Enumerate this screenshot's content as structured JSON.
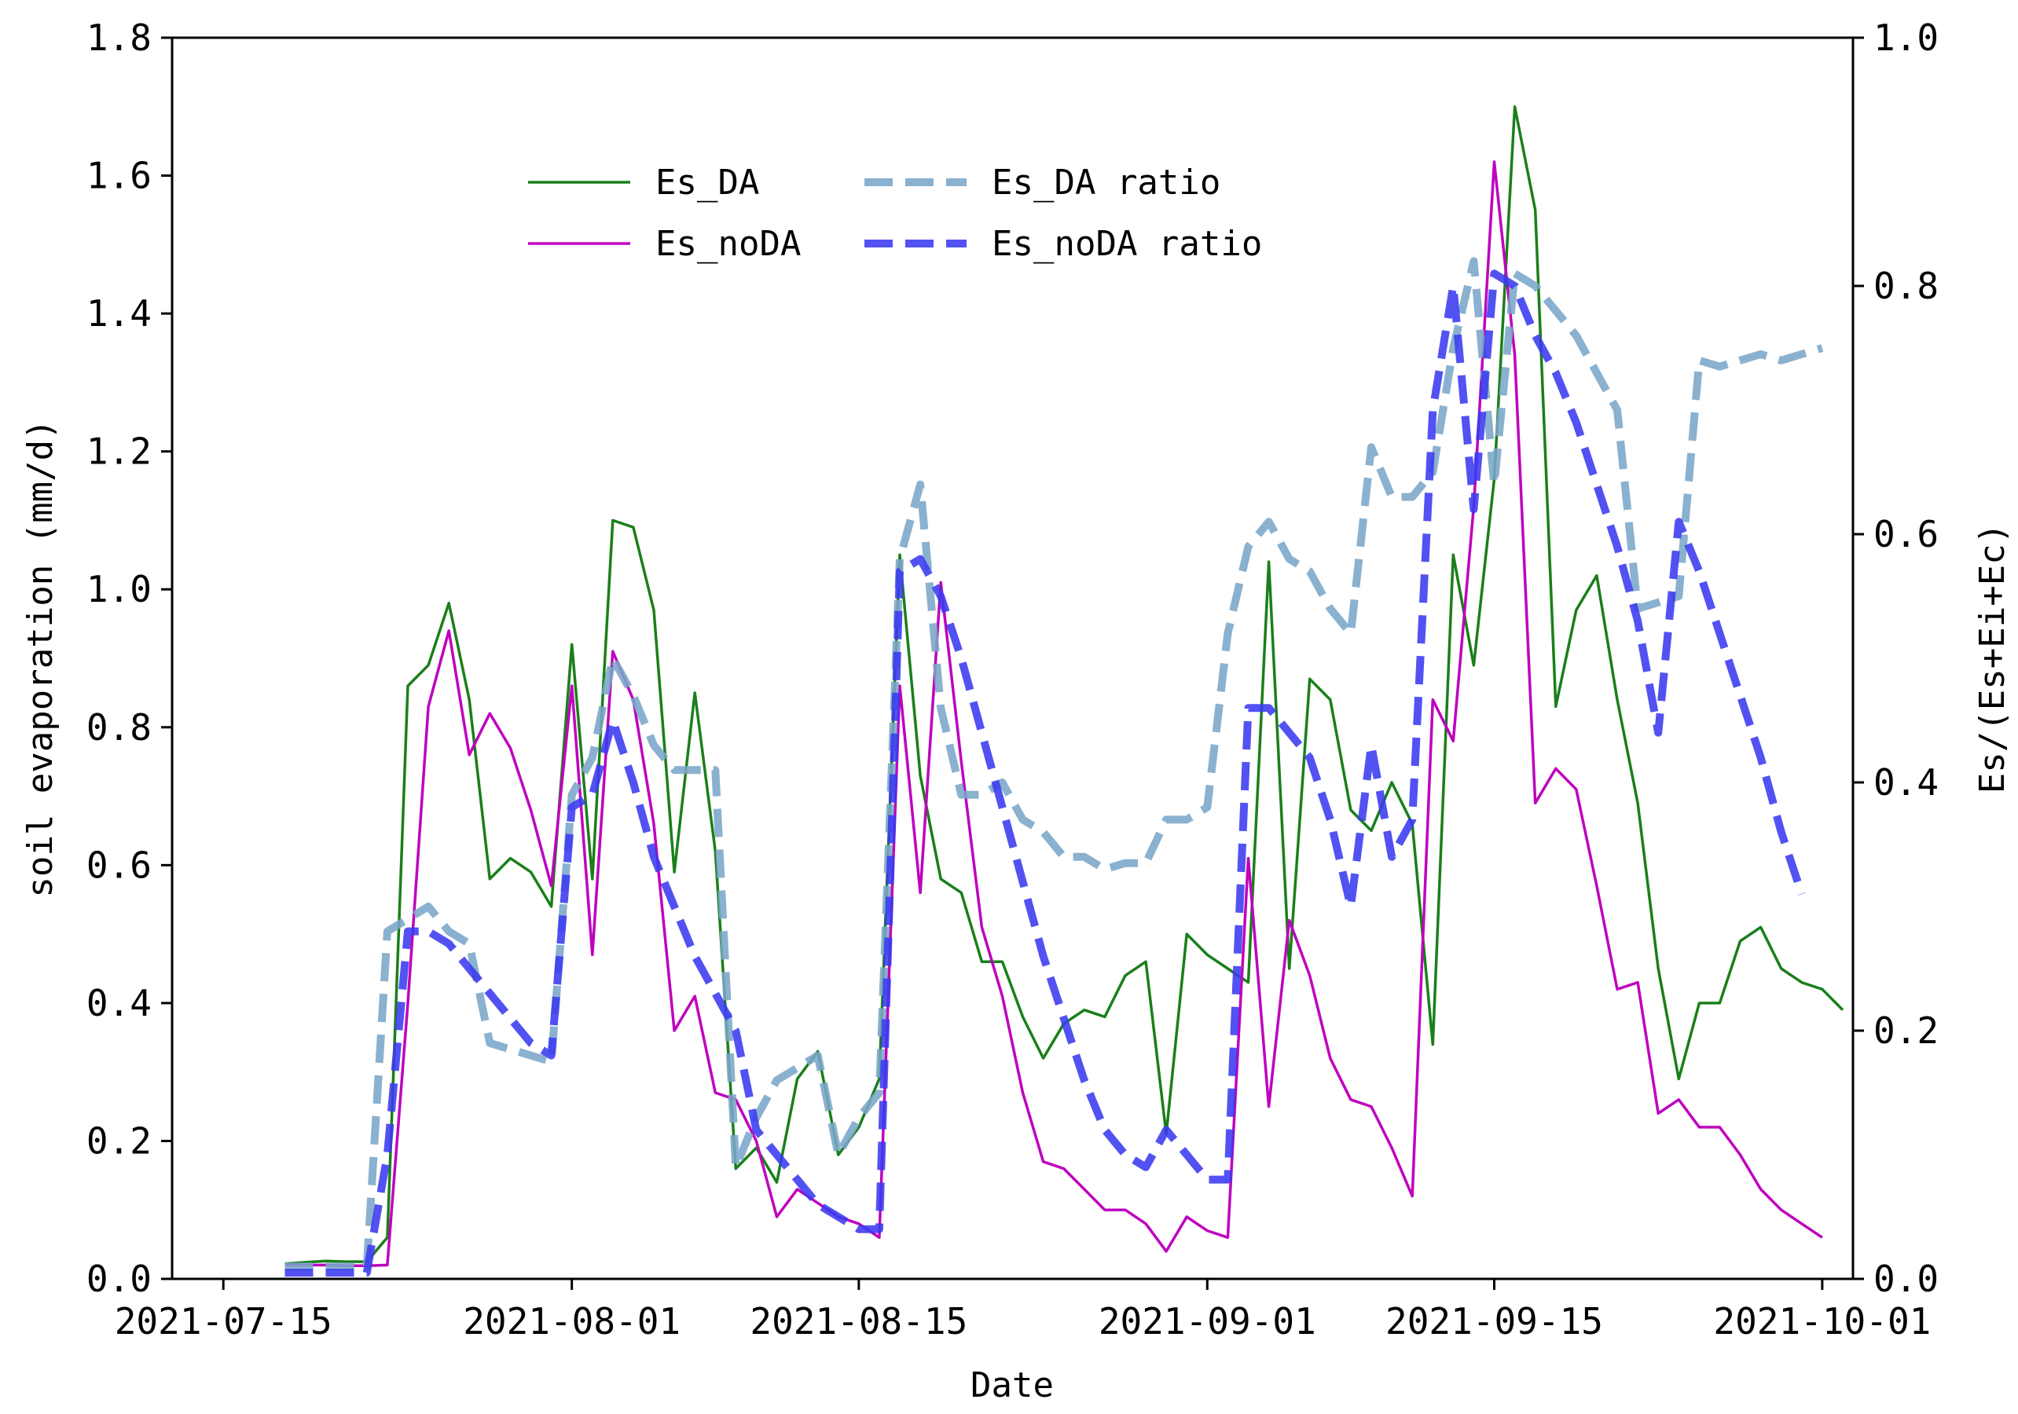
{
  "chart_data": {
    "type": "line",
    "xlabel": "Date",
    "ylabel": "soil evaporation (mm/d)",
    "ylabel_right": "Es/(Es+Ei+Ec)",
    "xlim": [
      -2.5,
      79.5
    ],
    "ylim": [
      0.0,
      1.8
    ],
    "ylim_right": [
      0.0,
      1.0
    ],
    "x_ticks": [
      {
        "day": 0,
        "label": "2021-07-15"
      },
      {
        "day": 17,
        "label": "2021-08-01"
      },
      {
        "day": 31,
        "label": "2021-08-15"
      },
      {
        "day": 48,
        "label": "2021-09-01"
      },
      {
        "day": 62,
        "label": "2021-09-15"
      },
      {
        "day": 78,
        "label": "2021-10-01"
      }
    ],
    "y_ticks": [
      "0.0",
      "0.2",
      "0.4",
      "0.6",
      "0.8",
      "1.0",
      "1.2",
      "1.4",
      "1.6",
      "1.8"
    ],
    "y_ticks_right": [
      "0.0",
      "0.2",
      "0.4",
      "0.6",
      "0.8",
      "1.0"
    ],
    "legend_position": "upper-center",
    "series": [
      {
        "name": "Es_DA",
        "axis": "left",
        "color": "#1a7f1a",
        "style": "solid",
        "points": [
          [
            3,
            0.022
          ],
          [
            4,
            0.024
          ],
          [
            5,
            0.026
          ],
          [
            6,
            0.025
          ],
          [
            7,
            0.025
          ],
          [
            8,
            0.06
          ],
          [
            9,
            0.86
          ],
          [
            10,
            0.89
          ],
          [
            11,
            0.98
          ],
          [
            12,
            0.84
          ],
          [
            13,
            0.58
          ],
          [
            14,
            0.61
          ],
          [
            15,
            0.59
          ],
          [
            16,
            0.54
          ],
          [
            17,
            0.92
          ],
          [
            18,
            0.58
          ],
          [
            19,
            1.1
          ],
          [
            20,
            1.09
          ],
          [
            21,
            0.97
          ],
          [
            22,
            0.59
          ],
          [
            23,
            0.85
          ],
          [
            24,
            0.62
          ],
          [
            25,
            0.16
          ],
          [
            26,
            0.19
          ],
          [
            27,
            0.14
          ],
          [
            28,
            0.29
          ],
          [
            29,
            0.33
          ],
          [
            30,
            0.18
          ],
          [
            31,
            0.22
          ],
          [
            32,
            0.29
          ],
          [
            33,
            1.05
          ],
          [
            34,
            0.73
          ],
          [
            35,
            0.58
          ],
          [
            36,
            0.56
          ],
          [
            37,
            0.46
          ],
          [
            38,
            0.46
          ],
          [
            39,
            0.38
          ],
          [
            40,
            0.32
          ],
          [
            41,
            0.37
          ],
          [
            42,
            0.39
          ],
          [
            43,
            0.38
          ],
          [
            44,
            0.44
          ],
          [
            45,
            0.46
          ],
          [
            46,
            0.21
          ],
          [
            47,
            0.5
          ],
          [
            48,
            0.47
          ],
          [
            49,
            0.45
          ],
          [
            50,
            0.43
          ],
          [
            51,
            1.04
          ],
          [
            52,
            0.45
          ],
          [
            53,
            0.87
          ],
          [
            54,
            0.84
          ],
          [
            55,
            0.68
          ],
          [
            56,
            0.65
          ],
          [
            57,
            0.72
          ],
          [
            58,
            0.66
          ],
          [
            59,
            0.34
          ],
          [
            60,
            1.05
          ],
          [
            61,
            0.89
          ],
          [
            62,
            1.16
          ],
          [
            63,
            1.7
          ],
          [
            64,
            1.55
          ],
          [
            65,
            0.83
          ],
          [
            66,
            0.97
          ],
          [
            67,
            1.02
          ],
          [
            68,
            0.84
          ],
          [
            69,
            0.69
          ],
          [
            70,
            0.45
          ],
          [
            71,
            0.29
          ],
          [
            72,
            0.4
          ],
          [
            73,
            0.4
          ],
          [
            74,
            0.49
          ],
          [
            75,
            0.51
          ],
          [
            76,
            0.45
          ],
          [
            77,
            0.43
          ],
          [
            78,
            0.42
          ],
          [
            79,
            0.39
          ]
        ]
      },
      {
        "name": "Es_noDA",
        "axis": "left",
        "color": "#bf00bf",
        "style": "solid",
        "points": [
          [
            3,
            0.02
          ],
          [
            4,
            0.02
          ],
          [
            5,
            0.02
          ],
          [
            6,
            0.019
          ],
          [
            7,
            0.019
          ],
          [
            8,
            0.02
          ],
          [
            9,
            0.4
          ],
          [
            10,
            0.83
          ],
          [
            11,
            0.94
          ],
          [
            12,
            0.76
          ],
          [
            13,
            0.82
          ],
          [
            14,
            0.77
          ],
          [
            15,
            0.68
          ],
          [
            16,
            0.57
          ],
          [
            17,
            0.86
          ],
          [
            18,
            0.47
          ],
          [
            19,
            0.91
          ],
          [
            20,
            0.84
          ],
          [
            21,
            0.66
          ],
          [
            22,
            0.36
          ],
          [
            23,
            0.41
          ],
          [
            24,
            0.27
          ],
          [
            25,
            0.26
          ],
          [
            26,
            0.2
          ],
          [
            27,
            0.09
          ],
          [
            28,
            0.13
          ],
          [
            29,
            0.11
          ],
          [
            30,
            0.09
          ],
          [
            31,
            0.08
          ],
          [
            32,
            0.06
          ],
          [
            33,
            0.86
          ],
          [
            34,
            0.56
          ],
          [
            35,
            1.01
          ],
          [
            36,
            0.75
          ],
          [
            37,
            0.51
          ],
          [
            38,
            0.41
          ],
          [
            39,
            0.27
          ],
          [
            40,
            0.17
          ],
          [
            41,
            0.16
          ],
          [
            42,
            0.13
          ],
          [
            43,
            0.1
          ],
          [
            44,
            0.1
          ],
          [
            45,
            0.08
          ],
          [
            46,
            0.04
          ],
          [
            47,
            0.09
          ],
          [
            48,
            0.07
          ],
          [
            49,
            0.06
          ],
          [
            50,
            0.61
          ],
          [
            51,
            0.25
          ],
          [
            52,
            0.52
          ],
          [
            53,
            0.44
          ],
          [
            54,
            0.32
          ],
          [
            55,
            0.26
          ],
          [
            56,
            0.25
          ],
          [
            57,
            0.19
          ],
          [
            58,
            0.12
          ],
          [
            59,
            0.84
          ],
          [
            60,
            0.78
          ],
          [
            61,
            1.12
          ],
          [
            62,
            1.62
          ],
          [
            63,
            1.34
          ],
          [
            64,
            0.69
          ],
          [
            65,
            0.74
          ],
          [
            66,
            0.71
          ],
          [
            67,
            0.57
          ],
          [
            68,
            0.42
          ],
          [
            69,
            0.43
          ],
          [
            70,
            0.24
          ],
          [
            71,
            0.26
          ],
          [
            72,
            0.22
          ],
          [
            73,
            0.22
          ],
          [
            74,
            0.18
          ],
          [
            75,
            0.13
          ],
          [
            76,
            0.1
          ],
          [
            77,
            0.08
          ],
          [
            78,
            0.06
          ]
        ]
      },
      {
        "name": "Es_DA ratio",
        "axis": "right",
        "color": "#7aa6c8",
        "style": "dashed",
        "points": [
          [
            3,
            0.01
          ],
          [
            4,
            0.01
          ],
          [
            5,
            0.01
          ],
          [
            6,
            0.01
          ],
          [
            7,
            0.01
          ],
          [
            8,
            0.28
          ],
          [
            9,
            0.29
          ],
          [
            10,
            0.3
          ],
          [
            11,
            0.28
          ],
          [
            12,
            0.27
          ],
          [
            13,
            0.19
          ],
          [
            14,
            0.185
          ],
          [
            15,
            0.18
          ],
          [
            16,
            0.175
          ],
          [
            17,
            0.39
          ],
          [
            18,
            0.42
          ],
          [
            19,
            0.5
          ],
          [
            20,
            0.47
          ],
          [
            21,
            0.43
          ],
          [
            22,
            0.41
          ],
          [
            23,
            0.41
          ],
          [
            24,
            0.41
          ],
          [
            25,
            0.09
          ],
          [
            26,
            0.13
          ],
          [
            27,
            0.16
          ],
          [
            28,
            0.17
          ],
          [
            29,
            0.18
          ],
          [
            30,
            0.1
          ],
          [
            31,
            0.13
          ],
          [
            32,
            0.15
          ],
          [
            33,
            0.58
          ],
          [
            34,
            0.64
          ],
          [
            35,
            0.46
          ],
          [
            36,
            0.39
          ],
          [
            37,
            0.39
          ],
          [
            38,
            0.4
          ],
          [
            39,
            0.37
          ],
          [
            40,
            0.36
          ],
          [
            41,
            0.34
          ],
          [
            42,
            0.34
          ],
          [
            43,
            0.33
          ],
          [
            44,
            0.335
          ],
          [
            45,
            0.335
          ],
          [
            46,
            0.37
          ],
          [
            47,
            0.37
          ],
          [
            48,
            0.38
          ],
          [
            49,
            0.52
          ],
          [
            50,
            0.59
          ],
          [
            51,
            0.61
          ],
          [
            52,
            0.58
          ],
          [
            53,
            0.57
          ],
          [
            54,
            0.54
          ],
          [
            55,
            0.52
          ],
          [
            56,
            0.67
          ],
          [
            57,
            0.63
          ],
          [
            58,
            0.63
          ],
          [
            59,
            0.65
          ],
          [
            60,
            0.75
          ],
          [
            61,
            0.82
          ],
          [
            62,
            0.64
          ],
          [
            63,
            0.81
          ],
          [
            64,
            0.8
          ],
          [
            65,
            0.78
          ],
          [
            66,
            0.76
          ],
          [
            67,
            0.73
          ],
          [
            68,
            0.7
          ],
          [
            69,
            0.54
          ],
          [
            70,
            0.545
          ],
          [
            71,
            0.55
          ],
          [
            72,
            0.74
          ],
          [
            73,
            0.735
          ],
          [
            74,
            0.74
          ],
          [
            75,
            0.745
          ],
          [
            76,
            0.74
          ],
          [
            77,
            0.745
          ],
          [
            78,
            0.75
          ]
        ]
      },
      {
        "name": "Es_noDA ratio",
        "axis": "right",
        "color": "#3a3af0",
        "style": "dashed",
        "points": [
          [
            3,
            0.005
          ],
          [
            4,
            0.005
          ],
          [
            5,
            0.005
          ],
          [
            6,
            0.005
          ],
          [
            7,
            0.005
          ],
          [
            8,
            0.1
          ],
          [
            9,
            0.28
          ],
          [
            10,
            0.28
          ],
          [
            11,
            0.27
          ],
          [
            12,
            0.25
          ],
          [
            13,
            0.23
          ],
          [
            14,
            0.21
          ],
          [
            15,
            0.19
          ],
          [
            16,
            0.18
          ],
          [
            17,
            0.38
          ],
          [
            18,
            0.39
          ],
          [
            19,
            0.45
          ],
          [
            20,
            0.4
          ],
          [
            21,
            0.34
          ],
          [
            22,
            0.3
          ],
          [
            23,
            0.26
          ],
          [
            24,
            0.23
          ],
          [
            25,
            0.2
          ],
          [
            26,
            0.12
          ],
          [
            27,
            0.1
          ],
          [
            28,
            0.08
          ],
          [
            29,
            0.06
          ],
          [
            30,
            0.05
          ],
          [
            31,
            0.04
          ],
          [
            32,
            0.04
          ],
          [
            33,
            0.57
          ],
          [
            34,
            0.58
          ],
          [
            35,
            0.55
          ],
          [
            36,
            0.5
          ],
          [
            37,
            0.44
          ],
          [
            38,
            0.38
          ],
          [
            39,
            0.32
          ],
          [
            40,
            0.26
          ],
          [
            41,
            0.21
          ],
          [
            42,
            0.16
          ],
          [
            43,
            0.12
          ],
          [
            44,
            0.1
          ],
          [
            45,
            0.09
          ],
          [
            46,
            0.12
          ],
          [
            47,
            0.1
          ],
          [
            48,
            0.08
          ],
          [
            49,
            0.08
          ],
          [
            50,
            0.46
          ],
          [
            51,
            0.46
          ],
          [
            52,
            0.44
          ],
          [
            53,
            0.42
          ],
          [
            54,
            0.37
          ],
          [
            55,
            0.3
          ],
          [
            56,
            0.43
          ],
          [
            57,
            0.34
          ],
          [
            58,
            0.37
          ],
          [
            59,
            0.7
          ],
          [
            60,
            0.8
          ],
          [
            61,
            0.62
          ],
          [
            62,
            0.81
          ],
          [
            63,
            0.8
          ],
          [
            64,
            0.76
          ],
          [
            65,
            0.73
          ],
          [
            66,
            0.69
          ],
          [
            67,
            0.64
          ],
          [
            68,
            0.59
          ],
          [
            69,
            0.53
          ],
          [
            70,
            0.44
          ],
          [
            71,
            0.61
          ],
          [
            72,
            0.57
          ],
          [
            73,
            0.52
          ],
          [
            74,
            0.47
          ],
          [
            75,
            0.42
          ],
          [
            76,
            0.36
          ],
          [
            77,
            0.31
          ]
        ]
      }
    ]
  }
}
